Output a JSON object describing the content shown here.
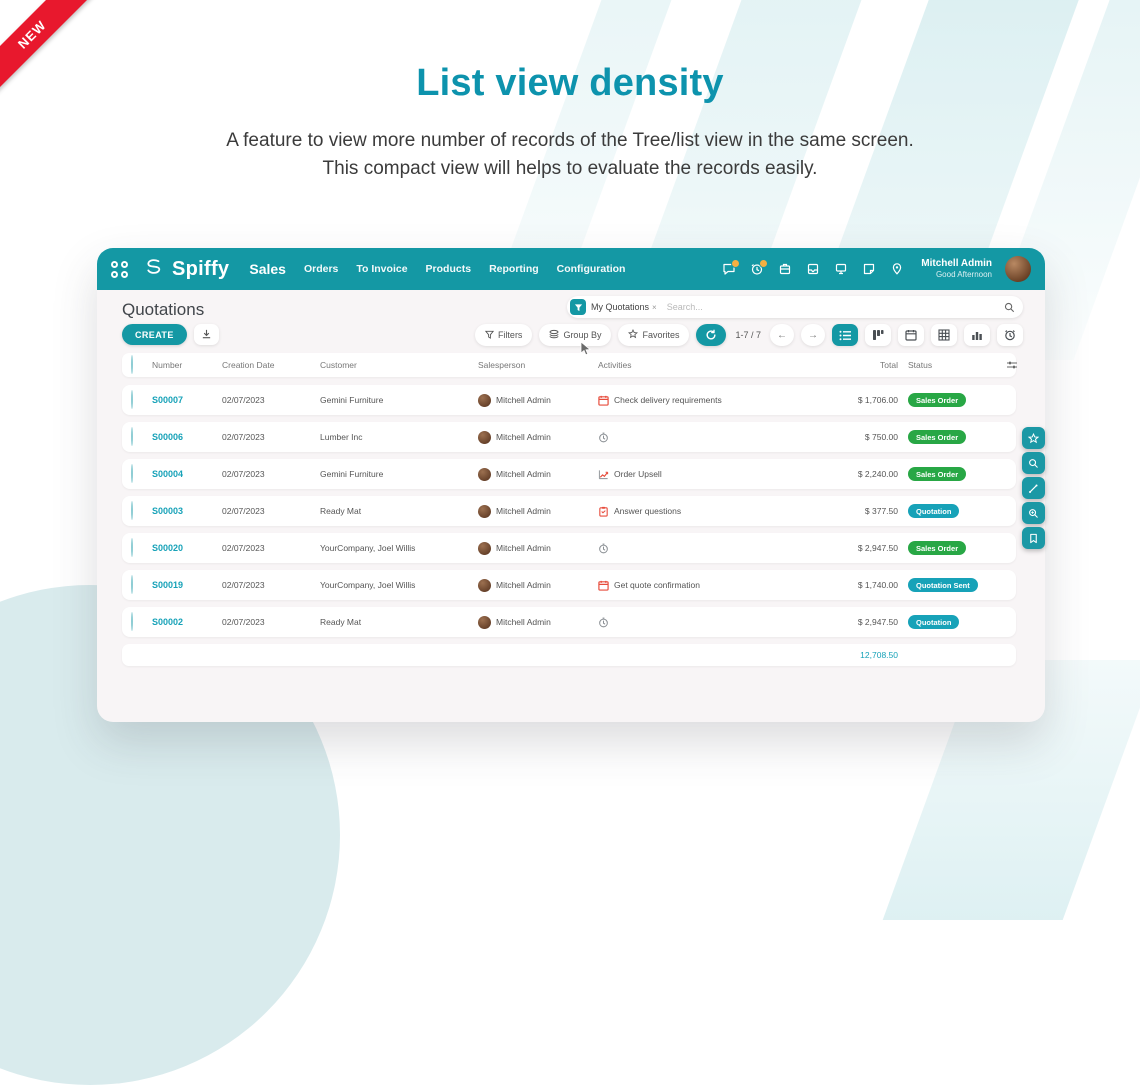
{
  "ribbon": {
    "label": "NEW"
  },
  "hero": {
    "title": "List view density",
    "subtitle_line1": "A feature to view more number of records of the Tree/list view in the same screen.",
    "subtitle_line2": "This compact view will helps to evaluate the records easily."
  },
  "app": {
    "brand": "Spiffy",
    "module": "Sales",
    "menu": [
      "Orders",
      "To Invoice",
      "Products",
      "Reporting",
      "Configuration"
    ],
    "header_icons": [
      {
        "name": "messages-icon",
        "badge": true
      },
      {
        "name": "activity-clock-icon",
        "badge": true
      },
      {
        "name": "enterprise-icon",
        "badge": false
      },
      {
        "name": "inbox-icon",
        "badge": false
      },
      {
        "name": "announcement-icon",
        "badge": false
      },
      {
        "name": "note-icon",
        "badge": false
      },
      {
        "name": "location-icon",
        "badge": false
      }
    ],
    "user": {
      "name": "Mitchell Admin",
      "greeting": "Good Afternoon"
    }
  },
  "page": {
    "title": "Quotations",
    "create_label": "CREATE",
    "search": {
      "filter_chip": "My Quotations",
      "chip_remove": "×",
      "placeholder": "Search..."
    },
    "controls": {
      "filters": "Filters",
      "group_by": "Group By",
      "favorites": "Favorites",
      "pager": "1-7 / 7",
      "prev_glyph": "←",
      "next_glyph": "→",
      "views": [
        {
          "name": "list-view-icon",
          "active": true
        },
        {
          "name": "kanban-view-icon",
          "active": false
        },
        {
          "name": "calendar-view-icon",
          "active": false
        },
        {
          "name": "pivot-view-icon",
          "active": false
        },
        {
          "name": "graph-view-icon",
          "active": false
        },
        {
          "name": "activity-view-icon",
          "active": false
        }
      ]
    },
    "table": {
      "columns": [
        "Number",
        "Creation Date",
        "Customer",
        "Salesperson",
        "Activities",
        "Total",
        "Status"
      ],
      "rows": [
        {
          "number": "S00007",
          "date": "02/07/2023",
          "customer": "Gemini Furniture",
          "salesperson": "Mitchell Admin",
          "activity": "Check delivery requirements",
          "activity_icon": "calendar",
          "total": "$ 1,706.00",
          "status": "Sales Order",
          "status_type": "success"
        },
        {
          "number": "S00006",
          "date": "02/07/2023",
          "customer": "Lumber Inc",
          "salesperson": "Mitchell Admin",
          "activity": "",
          "activity_icon": "clock",
          "total": "$ 750.00",
          "status": "Sales Order",
          "status_type": "success"
        },
        {
          "number": "S00004",
          "date": "02/07/2023",
          "customer": "Gemini Furniture",
          "salesperson": "Mitchell Admin",
          "activity": "Order Upsell",
          "activity_icon": "chart",
          "total": "$ 2,240.00",
          "status": "Sales Order",
          "status_type": "success"
        },
        {
          "number": "S00003",
          "date": "02/07/2023",
          "customer": "Ready Mat",
          "salesperson": "Mitchell Admin",
          "activity": "Answer questions",
          "activity_icon": "clipboard",
          "total": "$ 377.50",
          "status": "Quotation",
          "status_type": "info"
        },
        {
          "number": "S00020",
          "date": "02/07/2023",
          "customer": "YourCompany, Joel Willis",
          "salesperson": "Mitchell Admin",
          "activity": "",
          "activity_icon": "clock",
          "total": "$ 2,947.50",
          "status": "Sales Order",
          "status_type": "success"
        },
        {
          "number": "S00019",
          "date": "02/07/2023",
          "customer": "YourCompany, Joel Willis",
          "salesperson": "Mitchell Admin",
          "activity": "Get quote confirmation",
          "activity_icon": "calendar",
          "total": "$ 1,740.00",
          "status": "Quotation Sent",
          "status_type": "info"
        },
        {
          "number": "S00002",
          "date": "02/07/2023",
          "customer": "Ready Mat",
          "salesperson": "Mitchell Admin",
          "activity": "",
          "activity_icon": "clock",
          "total": "$ 2,947.50",
          "status": "Quotation",
          "status_type": "info"
        }
      ],
      "footer_total": "12,708.50"
    }
  },
  "colors": {
    "teal": "#1498a4",
    "title_teal": "#0d93ad",
    "badge_success": "#28a745",
    "badge_info": "#17a2b8",
    "ribbon_red": "#e8182d"
  }
}
